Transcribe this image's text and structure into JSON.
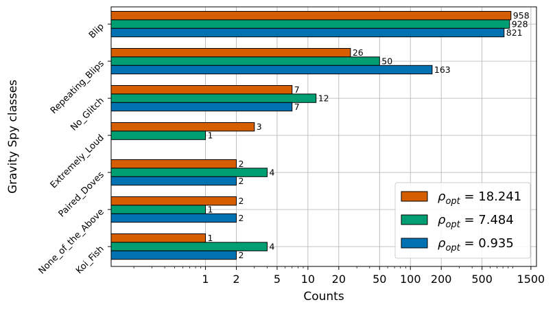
{
  "chart_data": {
    "type": "bar",
    "orientation": "horizontal",
    "scale": "log",
    "xlabel": "Counts",
    "ylabel": "Gravity Spy classes",
    "xticks": [
      "1",
      "2",
      "5",
      "10",
      "20",
      "50",
      "100",
      "200",
      "500",
      "1500"
    ],
    "xtick_values": [
      1,
      2,
      5,
      10,
      20,
      50,
      100,
      200,
      500,
      1500
    ],
    "xlim": [
      0.12,
      1700
    ],
    "categories": [
      "Blip",
      "Repeating_Blips",
      "No_Glitch",
      "Extremely_Loud",
      "Paired_Doves",
      "None_of_the_Above",
      "Koi_Fish"
    ],
    "series": [
      {
        "name": "ρopt = 18.241",
        "sub": "opt",
        "base": "ρ",
        "eq": " = 18.241",
        "color": "#D55E00",
        "values": [
          958,
          26,
          7,
          3,
          2,
          2,
          1
        ]
      },
      {
        "name": "ρopt = 7.484",
        "sub": "opt",
        "base": "ρ",
        "eq": " = 7.484",
        "color": "#009E73",
        "values": [
          928,
          50,
          12,
          1,
          4,
          1,
          4
        ]
      },
      {
        "name": "ρopt = 0.935",
        "sub": "opt",
        "base": "ρ",
        "eq": " = 0.935",
        "color": "#0072B2",
        "values": [
          821,
          163,
          7,
          null,
          2,
          2,
          2
        ]
      }
    ],
    "grid": true,
    "legend": "bottom-right"
  }
}
